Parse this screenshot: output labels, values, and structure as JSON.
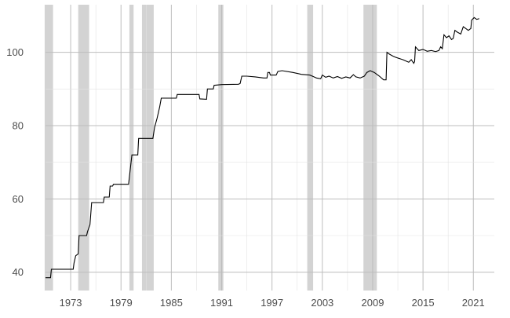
{
  "chart_data": {
    "type": "line",
    "title": "",
    "xlabel": "",
    "ylabel": "",
    "xlim": [
      1970.0,
      2023.5
    ],
    "ylim": [
      35.0,
      113.0
    ],
    "x_ticks": [
      1973,
      1979,
      1985,
      1991,
      1997,
      2003,
      2009,
      2015,
      2021
    ],
    "y_ticks": [
      40,
      60,
      80,
      100
    ],
    "grid": true,
    "legend": "none",
    "colors": {
      "line": "#000000",
      "shading": "#d3d3d3",
      "grid": "#bdbdbd",
      "tick_label": "#4d4d4d"
    },
    "shaded_periods": [
      [
        1969.9,
        1970.9
      ],
      [
        1973.9,
        1975.2
      ],
      [
        1980.0,
        1980.5
      ],
      [
        1981.5,
        1982.9
      ],
      [
        1990.6,
        1991.2
      ],
      [
        2001.2,
        2001.9
      ],
      [
        2007.9,
        2009.5
      ]
    ],
    "series": [
      {
        "values": [
          [
            1970.0,
            38.5
          ],
          [
            1970.6,
            38.5
          ],
          [
            1970.7,
            40.8
          ],
          [
            1973.3,
            40.8
          ],
          [
            1973.4,
            42.5
          ],
          [
            1973.6,
            44.5
          ],
          [
            1973.9,
            45.0
          ],
          [
            1974.0,
            50.0
          ],
          [
            1974.9,
            50.0
          ],
          [
            1975.0,
            51.0
          ],
          [
            1975.3,
            53.0
          ],
          [
            1975.5,
            59.0
          ],
          [
            1976.9,
            59.0
          ],
          [
            1977.0,
            60.5
          ],
          [
            1977.6,
            60.5
          ],
          [
            1977.7,
            63.5
          ],
          [
            1978.0,
            63.5
          ],
          [
            1978.1,
            64.0
          ],
          [
            1979.9,
            64.0
          ],
          [
            1980.0,
            66.0
          ],
          [
            1980.3,
            72.0
          ],
          [
            1981.0,
            72.0
          ],
          [
            1981.1,
            76.5
          ],
          [
            1982.8,
            76.5
          ],
          [
            1983.0,
            79.5
          ],
          [
            1983.3,
            82.0
          ],
          [
            1983.6,
            85.0
          ],
          [
            1983.8,
            87.5
          ],
          [
            1985.6,
            87.5
          ],
          [
            1985.7,
            88.5
          ],
          [
            1988.3,
            88.5
          ],
          [
            1988.4,
            87.3
          ],
          [
            1989.2,
            87.2
          ],
          [
            1989.3,
            90.0
          ],
          [
            1990.0,
            90.0
          ],
          [
            1990.1,
            91.0
          ],
          [
            1991.0,
            91.2
          ],
          [
            1993.0,
            91.3
          ],
          [
            1993.2,
            91.5
          ],
          [
            1993.4,
            93.5
          ],
          [
            1994.0,
            93.5
          ],
          [
            1995.0,
            93.3
          ],
          [
            1996.0,
            93.0
          ],
          [
            1996.4,
            93.0
          ],
          [
            1996.5,
            94.5
          ],
          [
            1996.7,
            94.5
          ],
          [
            1996.8,
            93.8
          ],
          [
            1997.5,
            93.8
          ],
          [
            1997.7,
            94.8
          ],
          [
            1998.2,
            95.0
          ],
          [
            1999.5,
            94.5
          ],
          [
            2000.5,
            94.0
          ],
          [
            2001.5,
            93.8
          ],
          [
            2002.0,
            93.3
          ],
          [
            2002.3,
            93.0
          ],
          [
            2002.8,
            92.8
          ],
          [
            2003.0,
            93.8
          ],
          [
            2003.4,
            93.2
          ],
          [
            2003.8,
            93.5
          ],
          [
            2004.3,
            93.0
          ],
          [
            2004.8,
            93.4
          ],
          [
            2005.3,
            92.9
          ],
          [
            2005.8,
            93.3
          ],
          [
            2006.3,
            93.0
          ],
          [
            2006.7,
            93.9
          ],
          [
            2007.0,
            93.3
          ],
          [
            2007.5,
            93.0
          ],
          [
            2008.0,
            93.5
          ],
          [
            2008.3,
            94.5
          ],
          [
            2008.7,
            95.0
          ],
          [
            2009.2,
            94.5
          ],
          [
            2009.8,
            93.5
          ],
          [
            2010.3,
            92.5
          ],
          [
            2010.6,
            92.5
          ],
          [
            2010.7,
            100.0
          ],
          [
            2011.0,
            99.5
          ],
          [
            2011.4,
            99.0
          ],
          [
            2011.8,
            98.6
          ],
          [
            2012.2,
            98.3
          ],
          [
            2012.6,
            98.0
          ],
          [
            2013.0,
            97.6
          ],
          [
            2013.3,
            97.3
          ],
          [
            2013.6,
            98.0
          ],
          [
            2013.9,
            97.0
          ],
          [
            2014.0,
            97.5
          ],
          [
            2014.1,
            101.5
          ],
          [
            2014.5,
            100.5
          ],
          [
            2015.0,
            100.8
          ],
          [
            2015.5,
            100.3
          ],
          [
            2016.0,
            100.5
          ],
          [
            2016.5,
            100.2
          ],
          [
            2016.9,
            100.5
          ],
          [
            2017.1,
            101.5
          ],
          [
            2017.3,
            101.0
          ],
          [
            2017.5,
            104.8
          ],
          [
            2017.8,
            104.0
          ],
          [
            2018.1,
            104.5
          ],
          [
            2018.4,
            103.5
          ],
          [
            2018.6,
            103.8
          ],
          [
            2018.8,
            106.0
          ],
          [
            2019.1,
            105.5
          ],
          [
            2019.5,
            105.0
          ],
          [
            2019.8,
            107.0
          ],
          [
            2020.1,
            106.5
          ],
          [
            2020.4,
            106.0
          ],
          [
            2020.7,
            106.5
          ],
          [
            2020.8,
            108.8
          ],
          [
            2021.1,
            109.5
          ],
          [
            2021.4,
            109.0
          ],
          [
            2021.7,
            109.2
          ]
        ]
      }
    ]
  }
}
